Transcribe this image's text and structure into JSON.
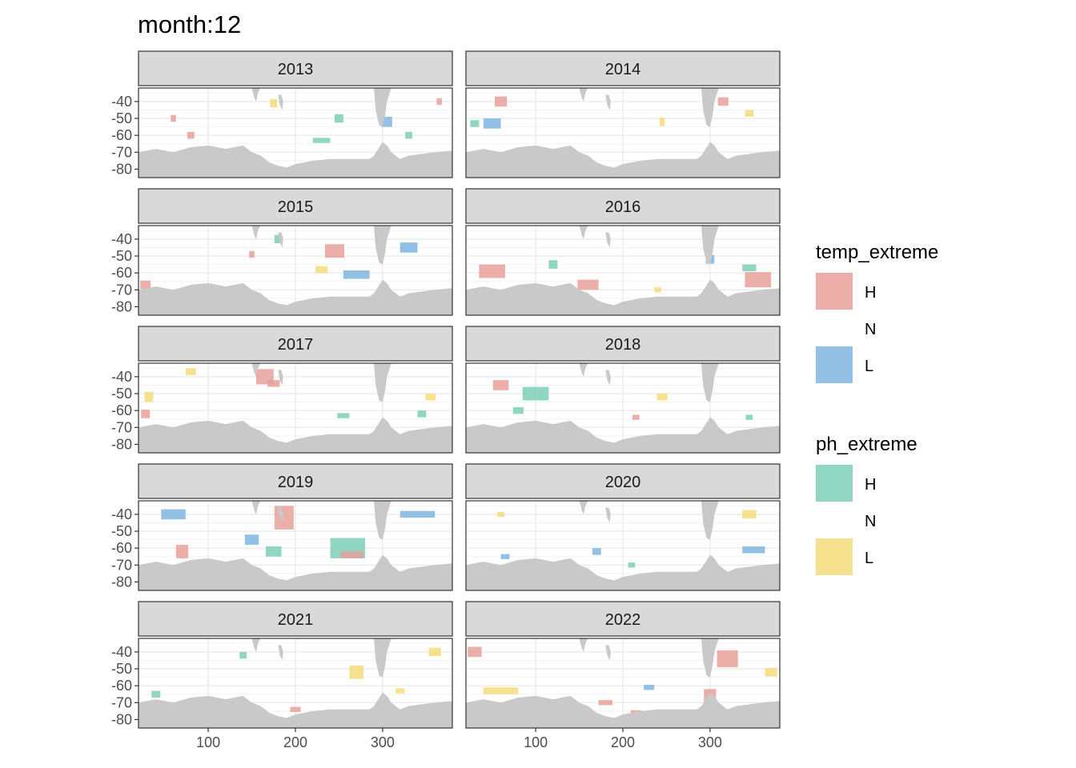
{
  "chart_data": {
    "type": "heatmap",
    "title": "month:12",
    "xlabel": "",
    "ylabel": "",
    "xlim": [
      20,
      380
    ],
    "ylim": [
      -85,
      -32
    ],
    "x_ticks": [
      100,
      200,
      300
    ],
    "y_ticks": [
      -40,
      -50,
      -60,
      -70,
      -80
    ],
    "y_tick_labels": [
      "-40",
      "-50",
      "-60",
      "-70",
      "-80"
    ],
    "grid": true,
    "legend_position": "right",
    "colors": {
      "temp_H": "#E8A09A",
      "temp_L": "#7FB6E0",
      "ph_H": "#7ECFB7",
      "ph_L": "#F5DC7A",
      "land": "#C9C9C9",
      "strip": "#D9D9D9"
    },
    "legends": [
      {
        "title": "temp_extreme",
        "entries": [
          {
            "label": "H",
            "color": "#E8A09A"
          },
          {
            "label": "N",
            "color": "none"
          },
          {
            "label": "L",
            "color": "#7FB6E0"
          }
        ]
      },
      {
        "title": "ph_extreme",
        "entries": [
          {
            "label": "H",
            "color": "#7ECFB7"
          },
          {
            "label": "N",
            "color": "none"
          },
          {
            "label": "L",
            "color": "#F5DC7A"
          }
        ]
      }
    ],
    "panels": [
      {
        "year": "2013",
        "patches": [
          {
            "x": 305,
            "y": -52,
            "w": 12,
            "h": 6,
            "cls": "temp_L"
          },
          {
            "x": 175,
            "y": -41,
            "w": 8,
            "h": 5,
            "cls": "ph_L"
          },
          {
            "x": 60,
            "y": -50,
            "w": 6,
            "h": 4,
            "cls": "temp_H"
          },
          {
            "x": 250,
            "y": -50,
            "w": 10,
            "h": 5,
            "cls": "ph_H"
          },
          {
            "x": 330,
            "y": -60,
            "w": 8,
            "h": 4,
            "cls": "ph_H"
          },
          {
            "x": 365,
            "y": -40,
            "w": 6,
            "h": 4,
            "cls": "temp_H"
          },
          {
            "x": 230,
            "y": -63,
            "w": 20,
            "h": 3,
            "cls": "ph_H"
          },
          {
            "x": 80,
            "y": -60,
            "w": 8,
            "h": 4,
            "cls": "temp_H"
          }
        ]
      },
      {
        "year": "2014",
        "patches": [
          {
            "x": 60,
            "y": -40,
            "w": 14,
            "h": 6,
            "cls": "temp_H"
          },
          {
            "x": 50,
            "y": -53,
            "w": 20,
            "h": 6,
            "cls": "temp_L"
          },
          {
            "x": 245,
            "y": -52,
            "w": 6,
            "h": 5,
            "cls": "ph_L"
          },
          {
            "x": 315,
            "y": -40,
            "w": 12,
            "h": 5,
            "cls": "temp_H"
          },
          {
            "x": 345,
            "y": -47,
            "w": 10,
            "h": 4,
            "cls": "ph_L"
          },
          {
            "x": 30,
            "y": -53,
            "w": 10,
            "h": 4,
            "cls": "ph_H"
          }
        ]
      },
      {
        "year": "2015",
        "patches": [
          {
            "x": 245,
            "y": -47,
            "w": 22,
            "h": 8,
            "cls": "temp_H"
          },
          {
            "x": 230,
            "y": -58,
            "w": 14,
            "h": 4,
            "cls": "ph_L"
          },
          {
            "x": 270,
            "y": -61,
            "w": 30,
            "h": 5,
            "cls": "temp_L"
          },
          {
            "x": 330,
            "y": -45,
            "w": 20,
            "h": 6,
            "cls": "temp_L"
          },
          {
            "x": 28,
            "y": -67,
            "w": 12,
            "h": 5,
            "cls": "temp_H"
          },
          {
            "x": 180,
            "y": -40,
            "w": 8,
            "h": 5,
            "cls": "ph_H"
          },
          {
            "x": 150,
            "y": -49,
            "w": 6,
            "h": 4,
            "cls": "temp_H"
          }
        ]
      },
      {
        "year": "2016",
        "patches": [
          {
            "x": 50,
            "y": -59,
            "w": 30,
            "h": 8,
            "cls": "temp_H"
          },
          {
            "x": 160,
            "y": -67,
            "w": 24,
            "h": 6,
            "cls": "temp_H"
          },
          {
            "x": 355,
            "y": -64,
            "w": 30,
            "h": 9,
            "cls": "temp_H"
          },
          {
            "x": 345,
            "y": -57,
            "w": 16,
            "h": 4,
            "cls": "ph_H"
          },
          {
            "x": 120,
            "y": -55,
            "w": 10,
            "h": 5,
            "cls": "ph_H"
          },
          {
            "x": 300,
            "y": -52,
            "w": 10,
            "h": 5,
            "cls": "temp_L"
          },
          {
            "x": 240,
            "y": -70,
            "w": 8,
            "h": 3,
            "cls": "ph_L"
          }
        ]
      },
      {
        "year": "2017",
        "patches": [
          {
            "x": 165,
            "y": -40,
            "w": 20,
            "h": 9,
            "cls": "temp_H"
          },
          {
            "x": 175,
            "y": -44,
            "w": 14,
            "h": 4,
            "cls": "temp_H"
          },
          {
            "x": 32,
            "y": -52,
            "w": 10,
            "h": 6,
            "cls": "ph_L"
          },
          {
            "x": 28,
            "y": -62,
            "w": 10,
            "h": 5,
            "cls": "temp_H"
          },
          {
            "x": 80,
            "y": -37,
            "w": 12,
            "h": 4,
            "cls": "ph_L"
          },
          {
            "x": 255,
            "y": -63,
            "w": 14,
            "h": 3,
            "cls": "ph_H"
          },
          {
            "x": 355,
            "y": -52,
            "w": 12,
            "h": 4,
            "cls": "ph_L"
          },
          {
            "x": 345,
            "y": -62,
            "w": 10,
            "h": 4,
            "cls": "ph_H"
          }
        ]
      },
      {
        "year": "2018",
        "patches": [
          {
            "x": 100,
            "y": -50,
            "w": 30,
            "h": 8,
            "cls": "ph_H"
          },
          {
            "x": 60,
            "y": -45,
            "w": 18,
            "h": 6,
            "cls": "temp_H"
          },
          {
            "x": 80,
            "y": -60,
            "w": 12,
            "h": 4,
            "cls": "ph_H"
          },
          {
            "x": 245,
            "y": -52,
            "w": 12,
            "h": 4,
            "cls": "ph_L"
          },
          {
            "x": 215,
            "y": -64,
            "w": 8,
            "h": 3,
            "cls": "temp_H"
          },
          {
            "x": 345,
            "y": -64,
            "w": 8,
            "h": 3,
            "cls": "ph_H"
          }
        ]
      },
      {
        "year": "2019",
        "patches": [
          {
            "x": 187,
            "y": -42,
            "w": 22,
            "h": 14,
            "cls": "temp_H"
          },
          {
            "x": 60,
            "y": -40,
            "w": 28,
            "h": 6,
            "cls": "temp_L"
          },
          {
            "x": 260,
            "y": -60,
            "w": 40,
            "h": 12,
            "cls": "ph_H"
          },
          {
            "x": 265,
            "y": -64,
            "w": 26,
            "h": 4,
            "cls": "temp_H"
          },
          {
            "x": 70,
            "y": -62,
            "w": 14,
            "h": 8,
            "cls": "temp_H"
          },
          {
            "x": 150,
            "y": -55,
            "w": 16,
            "h": 6,
            "cls": "temp_L"
          },
          {
            "x": 175,
            "y": -62,
            "w": 18,
            "h": 6,
            "cls": "ph_H"
          },
          {
            "x": 340,
            "y": -40,
            "w": 40,
            "h": 4,
            "cls": "temp_L"
          }
        ]
      },
      {
        "year": "2020",
        "patches": [
          {
            "x": 65,
            "y": -65,
            "w": 10,
            "h": 3,
            "cls": "temp_L"
          },
          {
            "x": 350,
            "y": -61,
            "w": 26,
            "h": 4,
            "cls": "temp_L"
          },
          {
            "x": 345,
            "y": -40,
            "w": 16,
            "h": 5,
            "cls": "ph_L"
          },
          {
            "x": 170,
            "y": -62,
            "w": 10,
            "h": 4,
            "cls": "temp_L"
          },
          {
            "x": 210,
            "y": -70,
            "w": 8,
            "h": 3,
            "cls": "ph_H"
          },
          {
            "x": 60,
            "y": -40,
            "w": 8,
            "h": 3,
            "cls": "ph_L"
          }
        ]
      },
      {
        "year": "2021",
        "patches": [
          {
            "x": 270,
            "y": -52,
            "w": 16,
            "h": 8,
            "cls": "ph_L"
          },
          {
            "x": 40,
            "y": -65,
            "w": 10,
            "h": 4,
            "cls": "ph_H"
          },
          {
            "x": 200,
            "y": -74,
            "w": 12,
            "h": 3,
            "cls": "temp_H"
          },
          {
            "x": 360,
            "y": -40,
            "w": 14,
            "h": 5,
            "cls": "ph_L"
          },
          {
            "x": 140,
            "y": -42,
            "w": 8,
            "h": 4,
            "cls": "ph_H"
          },
          {
            "x": 320,
            "y": -63,
            "w": 10,
            "h": 3,
            "cls": "ph_L"
          }
        ]
      },
      {
        "year": "2022",
        "patches": [
          {
            "x": 320,
            "y": -44,
            "w": 24,
            "h": 10,
            "cls": "temp_H"
          },
          {
            "x": 300,
            "y": -66,
            "w": 14,
            "h": 8,
            "cls": "temp_H"
          },
          {
            "x": 30,
            "y": -40,
            "w": 16,
            "h": 6,
            "cls": "temp_H"
          },
          {
            "x": 60,
            "y": -63,
            "w": 40,
            "h": 4,
            "cls": "ph_L"
          },
          {
            "x": 230,
            "y": -61,
            "w": 12,
            "h": 3,
            "cls": "temp_L"
          },
          {
            "x": 180,
            "y": -70,
            "w": 16,
            "h": 3,
            "cls": "temp_H"
          },
          {
            "x": 370,
            "y": -52,
            "w": 14,
            "h": 5,
            "cls": "ph_L"
          },
          {
            "x": 215,
            "y": -76,
            "w": 12,
            "h": 3,
            "cls": "temp_H"
          }
        ]
      }
    ]
  }
}
